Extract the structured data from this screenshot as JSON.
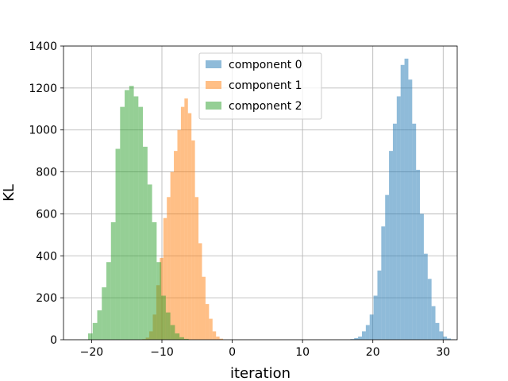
{
  "chart_data": {
    "type": "histogram",
    "xlabel": "iteration",
    "ylabel": "KL",
    "xlim": [
      -24,
      32
    ],
    "ylim": [
      0,
      1400
    ],
    "xticks": [
      -20,
      -10,
      0,
      10,
      20,
      30
    ],
    "xtick_labels": [
      "−20",
      "−10",
      "0",
      "10",
      "20",
      "30"
    ],
    "yticks": [
      0,
      200,
      400,
      600,
      800,
      1000,
      1200,
      1400
    ],
    "ytick_labels": [
      "0",
      "200",
      "400",
      "600",
      "800",
      "1000",
      "1200",
      "1400"
    ],
    "grid": true,
    "legend_position": "upper center",
    "series": [
      {
        "name": "component 0",
        "color": "#1f77b4",
        "alpha": 0.5,
        "bin_start": 16.8,
        "bin_width": 0.55,
        "counts": [
          3,
          8,
          15,
          40,
          70,
          120,
          210,
          330,
          540,
          690,
          900,
          1030,
          1160,
          1310,
          1340,
          1240,
          1030,
          810,
          600,
          410,
          290,
          160,
          80,
          40,
          15,
          6,
          2
        ]
      },
      {
        "name": "component 1",
        "color": "#ff7f0e",
        "alpha": 0.5,
        "bin_start": -12.8,
        "bin_width": 0.5,
        "counts": [
          3,
          10,
          40,
          120,
          260,
          390,
          580,
          680,
          800,
          900,
          1000,
          1110,
          1150,
          1080,
          950,
          680,
          460,
          300,
          170,
          100,
          40,
          15,
          5
        ]
      },
      {
        "name": "component 2",
        "color": "#2ca02c",
        "alpha": 0.5,
        "bin_start": -20.5,
        "bin_width": 0.65,
        "counts": [
          30,
          80,
          140,
          250,
          370,
          560,
          910,
          1110,
          1190,
          1210,
          1160,
          1110,
          920,
          740,
          560,
          370,
          210,
          130,
          70,
          30,
          12,
          4
        ]
      }
    ]
  }
}
